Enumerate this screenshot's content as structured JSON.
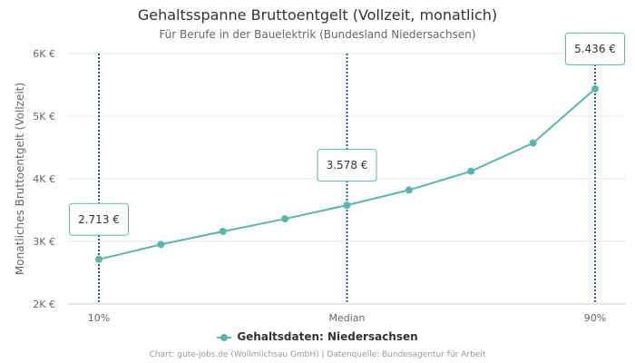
{
  "chart_data": {
    "type": "line",
    "title": "Gehaltsspanne Bruttoentgelt (Vollzeit, monatlich)",
    "subtitle": "Für Berufe in der Bauelektrik (Bundesland Niedersachsen)",
    "ylabel": "Monatliches Bruttoentgelt (Vollzeit)",
    "xlabel": "",
    "ylim": [
      2000,
      6000
    ],
    "y_ticks": [
      {
        "value": 2000,
        "label": "2K €"
      },
      {
        "value": 3000,
        "label": "3K €"
      },
      {
        "value": 4000,
        "label": "4K €"
      },
      {
        "value": 5000,
        "label": "5K €"
      },
      {
        "value": 6000,
        "label": "6K €"
      }
    ],
    "x_ticks": [
      {
        "index": 0,
        "label": "10%"
      },
      {
        "index": 4,
        "label": "Median"
      },
      {
        "index": 8,
        "label": "90%"
      }
    ],
    "grid": true,
    "legend_position": "bottom-center",
    "series": [
      {
        "name": "Gehaltsdaten: Niedersachsen",
        "color": "#5bb5ab",
        "values": [
          2713,
          2950,
          3160,
          3360,
          3578,
          3820,
          4120,
          4570,
          5436
        ]
      }
    ],
    "highlights": [
      {
        "index": 0,
        "value": 2713,
        "label": "2.713 €"
      },
      {
        "index": 4,
        "value": 3578,
        "label": "3.578 €"
      },
      {
        "index": 8,
        "value": 5436,
        "label": "5.436 €"
      }
    ],
    "marker_line_color": "#1f5f8b"
  },
  "credits": "Chart: gute-jobs.de (Wollmilchsau GmbH) | Datenquelle: Bundesagentur für Arbeit"
}
